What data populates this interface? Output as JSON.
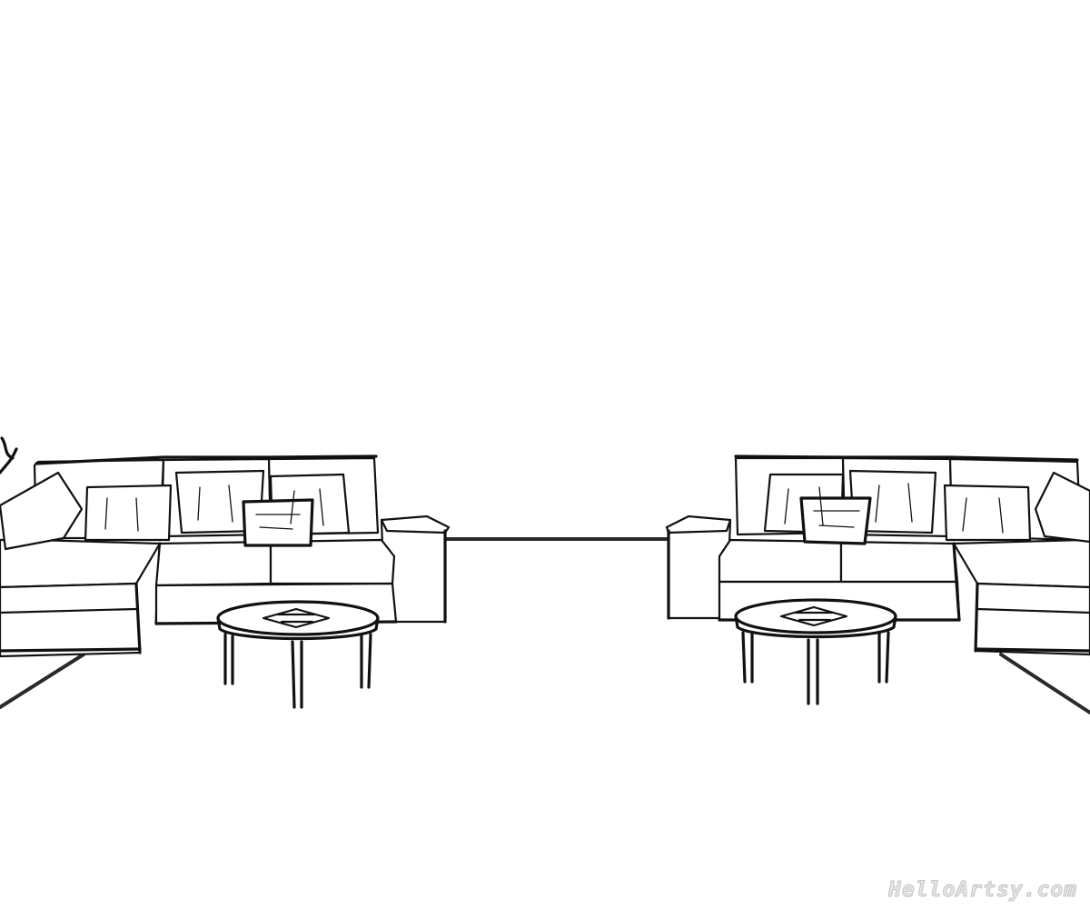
{
  "watermark": {
    "text": "HelloArtsy.com"
  },
  "scene": {
    "style": "black line drawing on white",
    "line_color": "#111111",
    "background_color": "#ffffff"
  }
}
